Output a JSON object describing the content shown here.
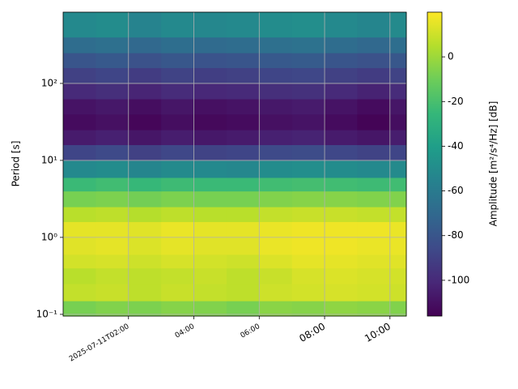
{
  "chart_data": {
    "type": "heatmap",
    "ylabel": "Period [s]",
    "colorbar_label": "Amplitude [m²/s⁴/Hz] [dB]",
    "colormap": "viridis",
    "clim": [
      -116,
      20
    ],
    "cticks": [
      0,
      -20,
      -40,
      -60,
      -80,
      -100
    ],
    "ylog": true,
    "grid": true,
    "xlim": [
      "2025-07-11T00:00",
      "2025-07-11T10:30"
    ],
    "ylim": [
      0.095,
      843
    ],
    "xticks": [
      {
        "value": "2025-07-11T02:00",
        "label": "2025-07-11T02:00"
      },
      {
        "value": "2025-07-11T04:00",
        "label": "04:00"
      },
      {
        "value": "2025-07-11T06:00",
        "label": "06:00"
      },
      {
        "value": "2025-07-11T08:00",
        "label": "08:00"
      },
      {
        "value": "2025-07-11T10:00",
        "label": "10:00"
      }
    ],
    "yticks": [
      {
        "value": 0.1,
        "label": "10⁻¹"
      },
      {
        "value": 1,
        "label": "10⁰"
      },
      {
        "value": 10,
        "label": "10¹"
      },
      {
        "value": 100,
        "label": "10²"
      }
    ],
    "x_edges": [
      "2025-07-11T00:00",
      "2025-07-11T01:00",
      "2025-07-11T02:00",
      "2025-07-11T03:00",
      "2025-07-11T04:00",
      "2025-07-11T05:00",
      "2025-07-11T06:00",
      "2025-07-11T07:00",
      "2025-07-11T08:00",
      "2025-07-11T09:00",
      "2025-07-11T10:00",
      "2025-07-11T10:30"
    ],
    "y_edges": [
      0.095,
      0.15,
      0.25,
      0.4,
      0.6,
      1,
      1.6,
      2.5,
      4,
      6,
      10,
      16,
      25,
      40,
      63,
      100,
      160,
      250,
      400,
      843
    ],
    "values": [
      [
        -8,
        -6,
        -7,
        -5,
        -6,
        -8,
        -4,
        -5,
        -3,
        -4,
        -6
      ],
      [
        8,
        9,
        7,
        9,
        8,
        7,
        10,
        11,
        12,
        11,
        10
      ],
      [
        6,
        8,
        7,
        8,
        9,
        7,
        9,
        12,
        13,
        12,
        11
      ],
      [
        11,
        12,
        10,
        12,
        11,
        10,
        13,
        15,
        15,
        14,
        14
      ],
      [
        14,
        15,
        13,
        15,
        14,
        14,
        16,
        17,
        17,
        16,
        16
      ],
      [
        15,
        15,
        14,
        16,
        15,
        15,
        16,
        17,
        17,
        17,
        16
      ],
      [
        6,
        7,
        5,
        7,
        6,
        6,
        8,
        9,
        9,
        8,
        8
      ],
      [
        -8,
        -7,
        -9,
        -7,
        -8,
        -8,
        -6,
        -5,
        -5,
        -6,
        -6
      ],
      [
        -24,
        -22,
        -25,
        -23,
        -24,
        -24,
        -22,
        -21,
        -22,
        -23,
        -22
      ],
      [
        -52,
        -50,
        -54,
        -51,
        -52,
        -53,
        -50,
        -49,
        -50,
        -52,
        -51
      ],
      [
        -88,
        -86,
        -90,
        -87,
        -89,
        -88,
        -86,
        -85,
        -87,
        -89,
        -88
      ],
      [
        -106,
        -104,
        -108,
        -105,
        -107,
        -106,
        -104,
        -103,
        -106,
        -108,
        -105
      ],
      [
        -112,
        -110,
        -114,
        -111,
        -113,
        -112,
        -110,
        -109,
        -112,
        -115,
        -111
      ],
      [
        -109,
        -107,
        -111,
        -108,
        -110,
        -109,
        -107,
        -106,
        -109,
        -112,
        -108
      ],
      [
        -100,
        -98,
        -102,
        -99,
        -101,
        -100,
        -98,
        -97,
        -100,
        -103,
        -99
      ],
      [
        -90,
        -88,
        -92,
        -89,
        -91,
        -90,
        -88,
        -87,
        -90,
        -92,
        -89
      ],
      [
        -80,
        -78,
        -82,
        -79,
        -81,
        -80,
        -78,
        -77,
        -80,
        -82,
        -79
      ],
      [
        -68,
        -66,
        -70,
        -67,
        -69,
        -68,
        -66,
        -65,
        -68,
        -70,
        -67
      ],
      [
        -52,
        -50,
        -55,
        -52,
        -53,
        -52,
        -50,
        -49,
        -52,
        -54,
        -51
      ]
    ]
  }
}
